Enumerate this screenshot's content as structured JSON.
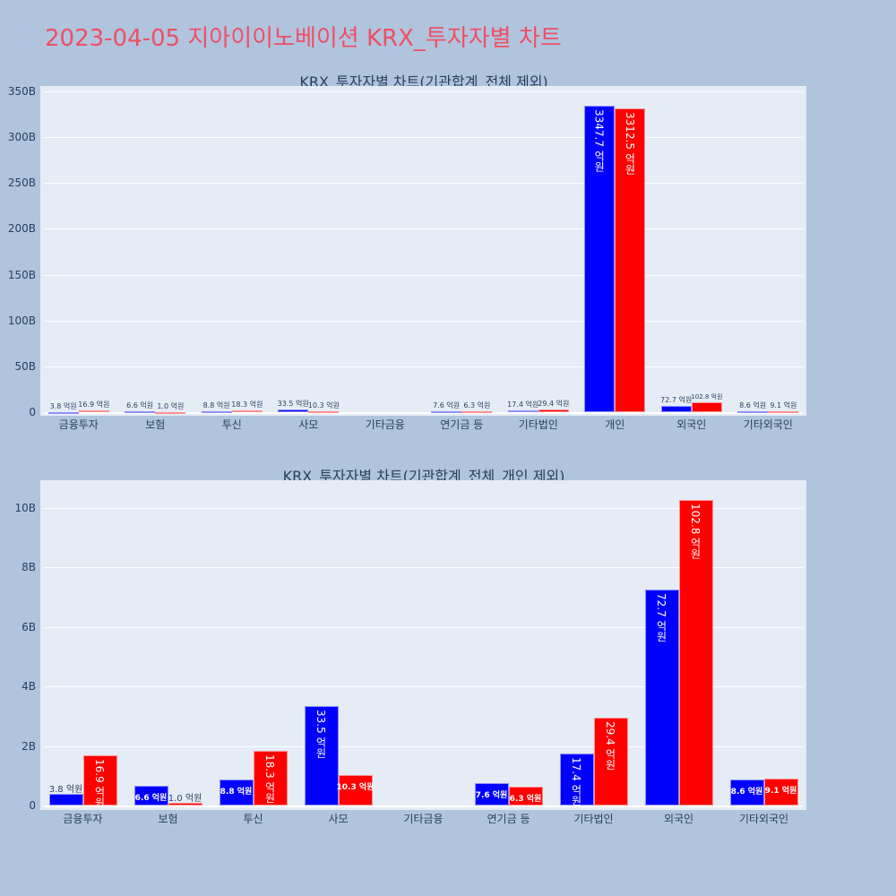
{
  "title": "2023-04-05 지아이이노베이션 KRX_투자자별 차트",
  "colors": {
    "title": "#ef4f64",
    "series_a": "#0000ff",
    "series_b": "#ff0000",
    "plot_bg": "#e5ecf6",
    "page_bg": "#b0c4de"
  },
  "chart_data": [
    {
      "type": "bar",
      "title": "KRX_투자자별 차트(기관합계_전체 제외)",
      "xlabel": "",
      "ylabel": "",
      "ylim": [
        0,
        350
      ],
      "yunit": "B",
      "yticks": [
        "0",
        "50B",
        "100B",
        "150B",
        "200B",
        "250B",
        "300B",
        "350B"
      ],
      "categories": [
        "금융투자",
        "보험",
        "투신",
        "사모",
        "기타금융",
        "연기금 등",
        "기타법인",
        "개인",
        "외국인",
        "기타외국인"
      ],
      "series": [
        {
          "name": "series_blue",
          "color": "#0000ff",
          "values": [
            0.38,
            0.66,
            0.88,
            3.35,
            0,
            0.76,
            1.74,
            334.77,
            7.27,
            0.86
          ],
          "labels": [
            "3.8 억원",
            "6.6 억원",
            "8.8 억원",
            "33.5 억원",
            "",
            "7.6 억원",
            "17.4 억원",
            "3347.7 억원",
            "72.7 억원",
            "8.6 억원"
          ]
        },
        {
          "name": "series_red",
          "color": "#ff0000",
          "values": [
            1.69,
            0.1,
            1.83,
            1.03,
            0,
            0.63,
            2.94,
            331.25,
            10.28,
            0.91
          ],
          "labels": [
            "16.9 억원",
            "1.0 억원",
            "18.3 억원",
            "10.3 억원",
            "",
            "6.3 억원",
            "29.4 억원",
            "3312.5 억원",
            "102.8 억원",
            "9.1 억원"
          ]
        }
      ],
      "grid": true,
      "legend": "none"
    },
    {
      "type": "bar",
      "title": "KRX_투자자별 차트(기관합계_전체_개인 제외)",
      "xlabel": "",
      "ylabel": "",
      "ylim": [
        0,
        10.9
      ],
      "yunit": "B",
      "yticks": [
        "0",
        "2B",
        "4B",
        "6B",
        "8B",
        "10B"
      ],
      "categories": [
        "금융투자",
        "보험",
        "투신",
        "사모",
        "기타금융",
        "연기금 등",
        "기타법인",
        "외국인",
        "기타외국인"
      ],
      "series": [
        {
          "name": "series_blue",
          "color": "#0000ff",
          "values": [
            0.38,
            0.66,
            0.88,
            3.35,
            0,
            0.76,
            1.74,
            7.27,
            0.86
          ],
          "labels": [
            "3.8 억원",
            "6.6 억원",
            "8.8 억원",
            "33.5 억원",
            "",
            "7.6 억원",
            "17.4 억원",
            "72.7 억원",
            "8.6 억원"
          ]
        },
        {
          "name": "series_red",
          "color": "#ff0000",
          "values": [
            1.69,
            0.1,
            1.83,
            1.03,
            0,
            0.63,
            2.94,
            10.28,
            0.91
          ],
          "labels": [
            "16.9 억원",
            "1.0 억원",
            "18.3 억원",
            "10.3 억원",
            "",
            "6.3 억원",
            "29.4 억원",
            "102.8 억원",
            "9.1 억원"
          ]
        }
      ],
      "grid": true,
      "legend": "none"
    }
  ]
}
